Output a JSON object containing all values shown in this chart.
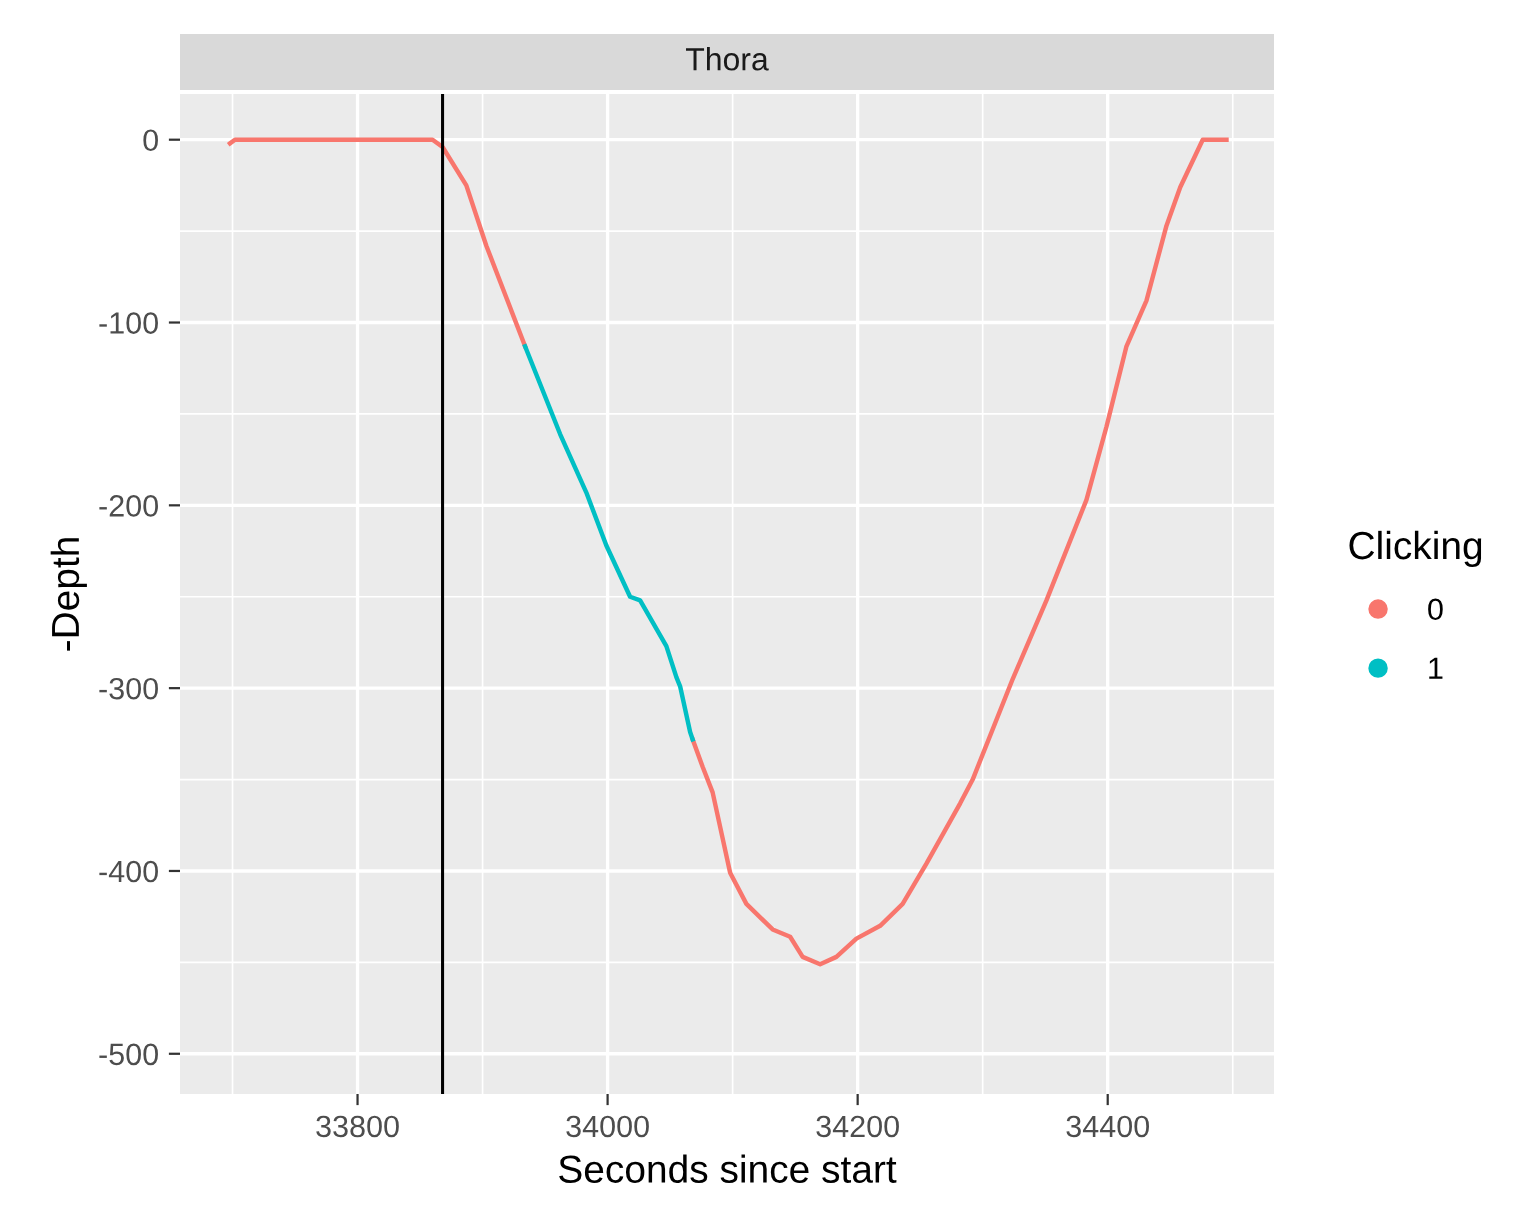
{
  "chart_data": {
    "type": "line",
    "title": "Thora",
    "xlabel": "Seconds since start",
    "ylabel": "-Depth",
    "legend_title": "Clicking",
    "legend": "right",
    "grid": true,
    "xlim": [
      33658,
      34533
    ],
    "ylim": [
      -522,
      25
    ],
    "xticks": [
      33800,
      34000,
      34200,
      34400
    ],
    "yticks": [
      -500,
      -400,
      -300,
      -200,
      -100,
      0
    ],
    "ref_lines": [
      {
        "axis": "x",
        "value": 33868,
        "color": "#000000"
      }
    ],
    "series": [
      {
        "name": "0",
        "color": "#f8766d",
        "x": [
          33698,
          33702,
          33740,
          33780,
          33820,
          33860,
          33868,
          33887,
          33903,
          33934,
          33950,
          34068,
          34076,
          34084,
          34098,
          34111,
          34132,
          34146,
          34156,
          34170,
          34183,
          34199,
          34218,
          34236,
          34255,
          34282,
          34292,
          34324,
          34351,
          34383,
          34399,
          34415,
          34431,
          34447,
          34458,
          34476,
          34495
        ],
        "values": [
          -2,
          0,
          0,
          0,
          0,
          0,
          -4,
          -25,
          -58,
          -113,
          null,
          -328,
          -343,
          -357,
          -401,
          -418,
          -432,
          -436,
          -447,
          -451,
          -447,
          -437,
          -430,
          -418,
          -396,
          -363,
          -350,
          -295,
          -252,
          -197,
          -157,
          -113,
          -88,
          -47,
          -26,
          0,
          0
        ]
      },
      {
        "name": "1",
        "color": "#00bfc4",
        "x": [
          33934,
          33962,
          33983,
          33999,
          34018,
          34026,
          34047,
          34055,
          34058,
          34066,
          34068
        ],
        "values": [
          -113,
          -161,
          -193,
          -222,
          -250,
          -252,
          -277,
          -294,
          -299,
          -324,
          -328
        ]
      }
    ]
  }
}
